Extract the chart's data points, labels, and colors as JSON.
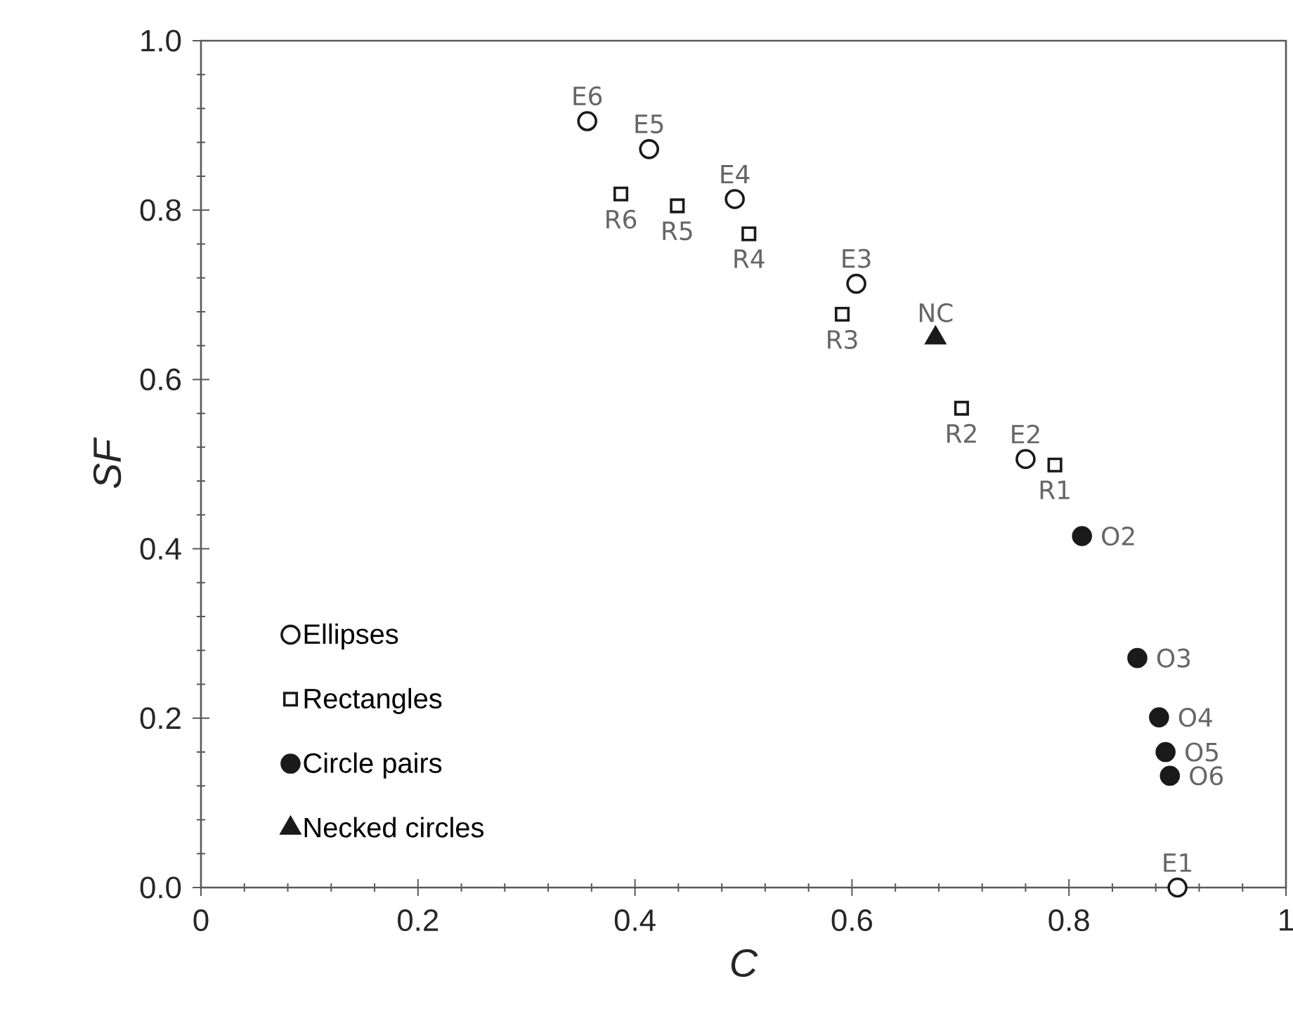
{
  "chart_data": {
    "type": "scatter",
    "xlabel": "C",
    "ylabel": "SF",
    "xlim": [
      0,
      1
    ],
    "ylim": [
      0,
      1
    ],
    "xticks": [
      0,
      0.2,
      0.4,
      0.6,
      0.8,
      1
    ],
    "yticks": [
      {
        "value": 0,
        "label": "0.0"
      },
      {
        "value": 0.2,
        "label": "0.2"
      },
      {
        "value": 0.4,
        "label": "0.4"
      },
      {
        "value": 0.6,
        "label": "0.6"
      },
      {
        "value": 0.8,
        "label": "0.8"
      },
      {
        "value": 1,
        "label": "1.0"
      }
    ],
    "grid": false,
    "legend": "bottom left",
    "series": [
      {
        "name": "Ellipses",
        "color": "#ffffff",
        "marker": "circle",
        "x": [
          0.9,
          0.76,
          0.604,
          0.492,
          0.413,
          0.356
        ],
        "values": [
          0.0,
          0.506,
          0.713,
          0.813,
          0.872,
          0.905
        ]
      },
      {
        "name": "Rectangles",
        "color": "#ffffff",
        "marker": "square",
        "x": [
          0.787,
          0.701,
          0.591,
          0.505,
          0.439,
          0.387
        ],
        "values": [
          0.499,
          0.566,
          0.677,
          0.772,
          0.805,
          0.819
        ]
      },
      {
        "name": "Circle pairs",
        "color": "#1a1a1a",
        "marker": "circle",
        "x": [
          0.812,
          0.863,
          0.883,
          0.889,
          0.893
        ],
        "values": [
          0.415,
          0.271,
          0.201,
          0.16,
          0.132
        ]
      },
      {
        "name": "Necked circles",
        "color": "#1a1a1a",
        "marker": "triangle",
        "x": [
          0.677
        ],
        "values": [
          0.649
        ]
      }
    ],
    "annotations": [
      {
        "text": "E6",
        "x": 0.356,
        "y": 0.905
      },
      {
        "text": "E5",
        "x": 0.413,
        "y": 0.872
      },
      {
        "text": "E4",
        "x": 0.492,
        "y": 0.813
      },
      {
        "text": "E3",
        "x": 0.604,
        "y": 0.713
      },
      {
        "text": "E2",
        "x": 0.76,
        "y": 0.506
      },
      {
        "text": "E1",
        "x": 0.9,
        "y": 0.0
      },
      {
        "text": "R6",
        "x": 0.387,
        "y": 0.819
      },
      {
        "text": "R5",
        "x": 0.439,
        "y": 0.805
      },
      {
        "text": "R4",
        "x": 0.505,
        "y": 0.772
      },
      {
        "text": "R3",
        "x": 0.591,
        "y": 0.677
      },
      {
        "text": "R2",
        "x": 0.701,
        "y": 0.566
      },
      {
        "text": "R1",
        "x": 0.787,
        "y": 0.499
      },
      {
        "text": "NC",
        "x": 0.677,
        "y": 0.649
      },
      {
        "text": "O2",
        "x": 0.812,
        "y": 0.415
      },
      {
        "text": "O3",
        "x": 0.863,
        "y": 0.271
      },
      {
        "text": "O4",
        "x": 0.883,
        "y": 0.201
      },
      {
        "text": "O5",
        "x": 0.889,
        "y": 0.16
      },
      {
        "text": "O6",
        "x": 0.893,
        "y": 0.132
      }
    ]
  }
}
